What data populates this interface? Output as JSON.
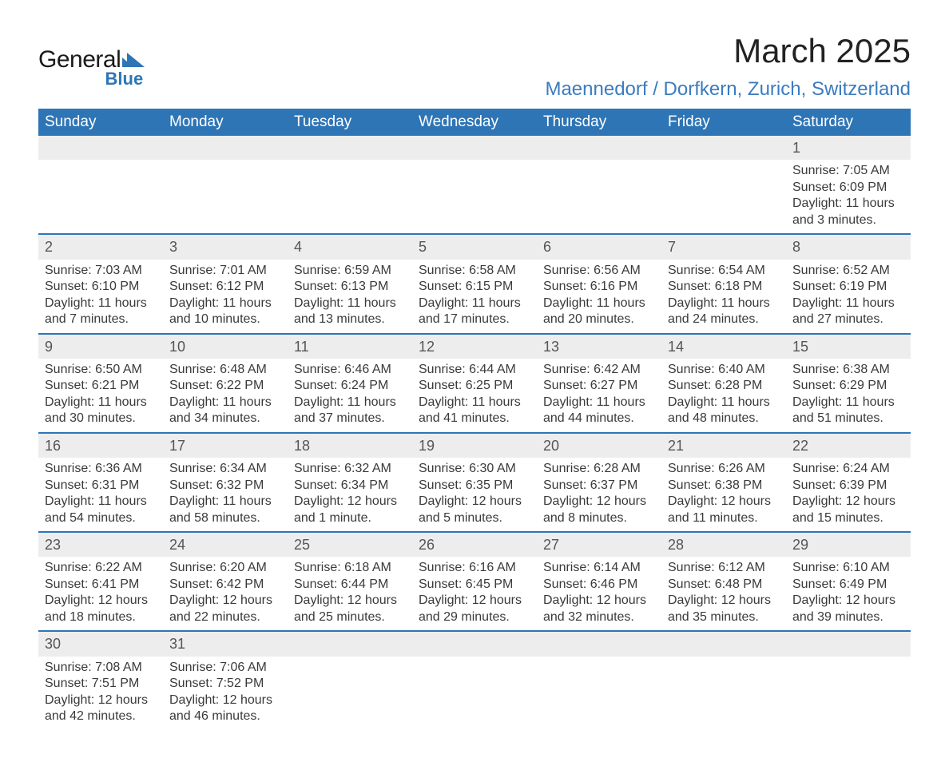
{
  "logo": {
    "text_main": "General",
    "text_sub": "Blue",
    "icon_color": "#2e75b6"
  },
  "header": {
    "month_title": "March 2025",
    "location": "Maennedorf / Dorfkern, Zurich, Switzerland"
  },
  "colors": {
    "header_bg": "#2e75b6",
    "header_text": "#ffffff",
    "daynum_bg": "#ededed",
    "row_border": "#2e75b6",
    "body_text": "#3a3a3a",
    "location_text": "#3b7bbf"
  },
  "weekdays": [
    "Sunday",
    "Monday",
    "Tuesday",
    "Wednesday",
    "Thursday",
    "Friday",
    "Saturday"
  ],
  "weeks": [
    [
      null,
      null,
      null,
      null,
      null,
      null,
      {
        "n": "1",
        "sunrise": "Sunrise: 7:05 AM",
        "sunset": "Sunset: 6:09 PM",
        "daylight": "Daylight: 11 hours and 3 minutes."
      }
    ],
    [
      {
        "n": "2",
        "sunrise": "Sunrise: 7:03 AM",
        "sunset": "Sunset: 6:10 PM",
        "daylight": "Daylight: 11 hours and 7 minutes."
      },
      {
        "n": "3",
        "sunrise": "Sunrise: 7:01 AM",
        "sunset": "Sunset: 6:12 PM",
        "daylight": "Daylight: 11 hours and 10 minutes."
      },
      {
        "n": "4",
        "sunrise": "Sunrise: 6:59 AM",
        "sunset": "Sunset: 6:13 PM",
        "daylight": "Daylight: 11 hours and 13 minutes."
      },
      {
        "n": "5",
        "sunrise": "Sunrise: 6:58 AM",
        "sunset": "Sunset: 6:15 PM",
        "daylight": "Daylight: 11 hours and 17 minutes."
      },
      {
        "n": "6",
        "sunrise": "Sunrise: 6:56 AM",
        "sunset": "Sunset: 6:16 PM",
        "daylight": "Daylight: 11 hours and 20 minutes."
      },
      {
        "n": "7",
        "sunrise": "Sunrise: 6:54 AM",
        "sunset": "Sunset: 6:18 PM",
        "daylight": "Daylight: 11 hours and 24 minutes."
      },
      {
        "n": "8",
        "sunrise": "Sunrise: 6:52 AM",
        "sunset": "Sunset: 6:19 PM",
        "daylight": "Daylight: 11 hours and 27 minutes."
      }
    ],
    [
      {
        "n": "9",
        "sunrise": "Sunrise: 6:50 AM",
        "sunset": "Sunset: 6:21 PM",
        "daylight": "Daylight: 11 hours and 30 minutes."
      },
      {
        "n": "10",
        "sunrise": "Sunrise: 6:48 AM",
        "sunset": "Sunset: 6:22 PM",
        "daylight": "Daylight: 11 hours and 34 minutes."
      },
      {
        "n": "11",
        "sunrise": "Sunrise: 6:46 AM",
        "sunset": "Sunset: 6:24 PM",
        "daylight": "Daylight: 11 hours and 37 minutes."
      },
      {
        "n": "12",
        "sunrise": "Sunrise: 6:44 AM",
        "sunset": "Sunset: 6:25 PM",
        "daylight": "Daylight: 11 hours and 41 minutes."
      },
      {
        "n": "13",
        "sunrise": "Sunrise: 6:42 AM",
        "sunset": "Sunset: 6:27 PM",
        "daylight": "Daylight: 11 hours and 44 minutes."
      },
      {
        "n": "14",
        "sunrise": "Sunrise: 6:40 AM",
        "sunset": "Sunset: 6:28 PM",
        "daylight": "Daylight: 11 hours and 48 minutes."
      },
      {
        "n": "15",
        "sunrise": "Sunrise: 6:38 AM",
        "sunset": "Sunset: 6:29 PM",
        "daylight": "Daylight: 11 hours and 51 minutes."
      }
    ],
    [
      {
        "n": "16",
        "sunrise": "Sunrise: 6:36 AM",
        "sunset": "Sunset: 6:31 PM",
        "daylight": "Daylight: 11 hours and 54 minutes."
      },
      {
        "n": "17",
        "sunrise": "Sunrise: 6:34 AM",
        "sunset": "Sunset: 6:32 PM",
        "daylight": "Daylight: 11 hours and 58 minutes."
      },
      {
        "n": "18",
        "sunrise": "Sunrise: 6:32 AM",
        "sunset": "Sunset: 6:34 PM",
        "daylight": "Daylight: 12 hours and 1 minute."
      },
      {
        "n": "19",
        "sunrise": "Sunrise: 6:30 AM",
        "sunset": "Sunset: 6:35 PM",
        "daylight": "Daylight: 12 hours and 5 minutes."
      },
      {
        "n": "20",
        "sunrise": "Sunrise: 6:28 AM",
        "sunset": "Sunset: 6:37 PM",
        "daylight": "Daylight: 12 hours and 8 minutes."
      },
      {
        "n": "21",
        "sunrise": "Sunrise: 6:26 AM",
        "sunset": "Sunset: 6:38 PM",
        "daylight": "Daylight: 12 hours and 11 minutes."
      },
      {
        "n": "22",
        "sunrise": "Sunrise: 6:24 AM",
        "sunset": "Sunset: 6:39 PM",
        "daylight": "Daylight: 12 hours and 15 minutes."
      }
    ],
    [
      {
        "n": "23",
        "sunrise": "Sunrise: 6:22 AM",
        "sunset": "Sunset: 6:41 PM",
        "daylight": "Daylight: 12 hours and 18 minutes."
      },
      {
        "n": "24",
        "sunrise": "Sunrise: 6:20 AM",
        "sunset": "Sunset: 6:42 PM",
        "daylight": "Daylight: 12 hours and 22 minutes."
      },
      {
        "n": "25",
        "sunrise": "Sunrise: 6:18 AM",
        "sunset": "Sunset: 6:44 PM",
        "daylight": "Daylight: 12 hours and 25 minutes."
      },
      {
        "n": "26",
        "sunrise": "Sunrise: 6:16 AM",
        "sunset": "Sunset: 6:45 PM",
        "daylight": "Daylight: 12 hours and 29 minutes."
      },
      {
        "n": "27",
        "sunrise": "Sunrise: 6:14 AM",
        "sunset": "Sunset: 6:46 PM",
        "daylight": "Daylight: 12 hours and 32 minutes."
      },
      {
        "n": "28",
        "sunrise": "Sunrise: 6:12 AM",
        "sunset": "Sunset: 6:48 PM",
        "daylight": "Daylight: 12 hours and 35 minutes."
      },
      {
        "n": "29",
        "sunrise": "Sunrise: 6:10 AM",
        "sunset": "Sunset: 6:49 PM",
        "daylight": "Daylight: 12 hours and 39 minutes."
      }
    ],
    [
      {
        "n": "30",
        "sunrise": "Sunrise: 7:08 AM",
        "sunset": "Sunset: 7:51 PM",
        "daylight": "Daylight: 12 hours and 42 minutes."
      },
      {
        "n": "31",
        "sunrise": "Sunrise: 7:06 AM",
        "sunset": "Sunset: 7:52 PM",
        "daylight": "Daylight: 12 hours and 46 minutes."
      },
      null,
      null,
      null,
      null,
      null
    ]
  ]
}
